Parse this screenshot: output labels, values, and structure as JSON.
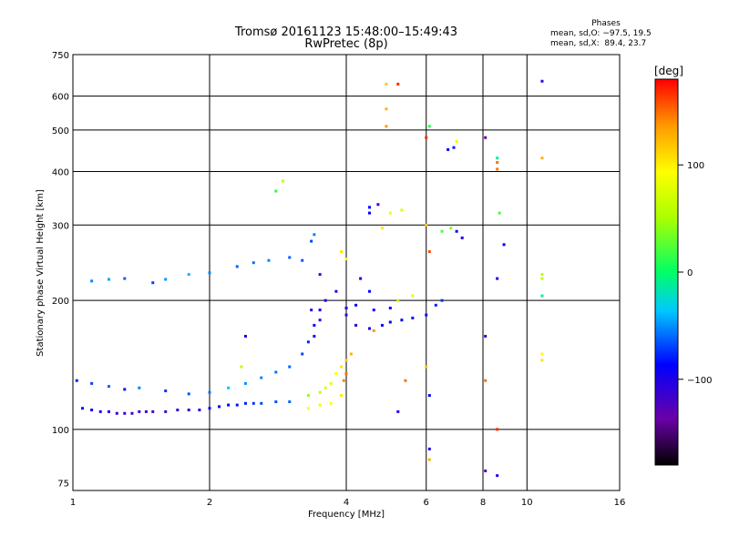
{
  "chart_data": {
    "type": "scatter",
    "title": "Tromsø 20161123 15:48:00–15:49:43",
    "subtitle": "RwPretec (8p)",
    "xlabel": "Frequency [MHz]",
    "ylabel": "Stationary phase Virtual Height [km]",
    "x_scale": "log",
    "y_scale": "log",
    "xlim": [
      1,
      16
    ],
    "ylim": [
      72,
      750
    ],
    "x_ticks": [
      1,
      2,
      4,
      6,
      8,
      10,
      16
    ],
    "x_tick_labels": [
      "1",
      "2",
      "4",
      "6",
      "8",
      "10",
      "16"
    ],
    "x_grid": [
      2,
      4,
      6,
      8,
      10
    ],
    "y_ticks": [
      75,
      100,
      200,
      300,
      400,
      500,
      600,
      750
    ],
    "y_tick_labels": [
      "75",
      "100",
      "200",
      "300",
      "400",
      "500",
      "600",
      "750"
    ],
    "y_grid": [
      100,
      200,
      300,
      400,
      500,
      600
    ],
    "grid": true,
    "colorbar": {
      "label": "[deg]",
      "range": [
        -180,
        180
      ],
      "ticks": [
        100,
        0,
        -100
      ],
      "tick_labels": [
        "100",
        "0",
        "−100"
      ]
    },
    "stats": {
      "header": "Phases",
      "row1": "mean, sd,O: −97.5, 19.5",
      "row2": "mean, sd,X:  89.4, 23.7"
    },
    "series": [
      {
        "points": [
          [
            1.05,
            112,
            -110
          ],
          [
            1.1,
            111,
            -105
          ],
          [
            1.15,
            110,
            -112
          ],
          [
            1.2,
            110,
            -115
          ],
          [
            1.25,
            109,
            -118
          ],
          [
            1.3,
            109,
            -120
          ],
          [
            1.35,
            109,
            -125
          ],
          [
            1.4,
            110,
            -120
          ],
          [
            1.45,
            110,
            -122
          ],
          [
            1.5,
            110,
            -125
          ],
          [
            1.6,
            110,
            -122
          ],
          [
            1.7,
            111,
            -118
          ],
          [
            1.8,
            111,
            -115
          ],
          [
            1.9,
            111,
            -112
          ],
          [
            2.0,
            112,
            -108
          ],
          [
            2.1,
            113,
            -105
          ],
          [
            2.2,
            114,
            -100
          ],
          [
            2.3,
            114,
            -95
          ],
          [
            2.4,
            115,
            -90
          ],
          [
            2.5,
            115,
            -85
          ],
          [
            2.6,
            115,
            -80
          ],
          [
            2.8,
            116,
            -75
          ],
          [
            3.0,
            116,
            -70
          ],
          [
            1.02,
            130,
            -90
          ],
          [
            1.1,
            128,
            -80
          ],
          [
            1.2,
            126,
            -70
          ],
          [
            1.3,
            124,
            -95
          ],
          [
            1.4,
            125,
            -60
          ],
          [
            1.6,
            123,
            -85
          ],
          [
            1.8,
            121,
            -75
          ],
          [
            2.0,
            122,
            -65
          ],
          [
            2.2,
            125,
            -40
          ],
          [
            2.4,
            128,
            -55
          ],
          [
            2.6,
            132,
            -60
          ],
          [
            2.8,
            136,
            -65
          ],
          [
            3.0,
            140,
            -70
          ],
          [
            3.2,
            150,
            -80
          ],
          [
            3.3,
            160,
            -90
          ],
          [
            3.4,
            175,
            -100
          ],
          [
            3.5,
            190,
            -105
          ],
          [
            3.6,
            200,
            -110
          ],
          [
            3.8,
            210,
            -115
          ],
          [
            4.0,
            185,
            -120
          ],
          [
            4.2,
            175,
            -115
          ],
          [
            4.5,
            172,
            -110
          ],
          [
            4.8,
            175,
            -105
          ],
          [
            5.0,
            178,
            -100
          ],
          [
            5.3,
            180,
            -100
          ],
          [
            5.6,
            182,
            -95
          ],
          [
            6.0,
            185,
            -95
          ],
          [
            6.3,
            195,
            -90
          ],
          [
            6.5,
            200,
            -85
          ],
          [
            1.1,
            222,
            -60
          ],
          [
            1.2,
            224,
            -50
          ],
          [
            1.3,
            225,
            -70
          ],
          [
            1.5,
            220,
            -80
          ],
          [
            1.6,
            224,
            -55
          ],
          [
            1.8,
            230,
            -45
          ],
          [
            2.0,
            232,
            -60
          ],
          [
            2.3,
            240,
            -70
          ],
          [
            2.5,
            245,
            -65
          ],
          [
            2.7,
            248,
            -60
          ],
          [
            3.0,
            252,
            -70
          ],
          [
            3.2,
            248,
            -75
          ],
          [
            3.35,
            275,
            -80
          ],
          [
            3.4,
            285,
            -60
          ],
          [
            3.35,
            190,
            -120
          ],
          [
            3.5,
            180,
            -125
          ],
          [
            3.4,
            165,
            -115
          ],
          [
            3.5,
            230,
            -120
          ],
          [
            4.0,
            192,
            -110
          ],
          [
            4.2,
            195,
            -105
          ],
          [
            4.6,
            190,
            -100
          ],
          [
            5.0,
            192,
            -100
          ],
          [
            4.3,
            225,
            -105
          ],
          [
            4.5,
            210,
            -100
          ],
          [
            3.3,
            120,
            40
          ],
          [
            3.5,
            122,
            60
          ],
          [
            3.6,
            125,
            80
          ],
          [
            3.7,
            128,
            90
          ],
          [
            3.8,
            135,
            100
          ],
          [
            3.9,
            140,
            110
          ],
          [
            4.0,
            145,
            120
          ],
          [
            4.1,
            150,
            130
          ],
          [
            3.7,
            115,
            100
          ],
          [
            3.9,
            120,
            110
          ],
          [
            3.95,
            130,
            145
          ],
          [
            4.0,
            135,
            150
          ],
          [
            3.3,
            112,
            100
          ],
          [
            3.5,
            114,
            95
          ],
          [
            4.6,
            170,
            140
          ],
          [
            5.2,
            200,
            60
          ],
          [
            5.6,
            205,
            80
          ],
          [
            4.0,
            250,
            100
          ],
          [
            3.9,
            260,
            110
          ],
          [
            4.8,
            295,
            110
          ],
          [
            5.0,
            320,
            90
          ],
          [
            5.3,
            325,
            80
          ],
          [
            6.5,
            290,
            20
          ],
          [
            6.8,
            295,
            40
          ],
          [
            7.0,
            290,
            -100
          ],
          [
            7.2,
            280,
            -110
          ],
          [
            6.7,
            450,
            -100
          ],
          [
            6.9,
            455,
            -95
          ],
          [
            7.0,
            470,
            90
          ],
          [
            4.9,
            560,
            130
          ],
          [
            4.9,
            640,
            120
          ],
          [
            5.2,
            640,
            170
          ],
          [
            4.9,
            510,
            140
          ],
          [
            8.1,
            480,
            -140
          ],
          [
            8.6,
            430,
            -10
          ],
          [
            8.6,
            420,
            150
          ],
          [
            8.6,
            405,
            150
          ],
          [
            8.7,
            320,
            20
          ],
          [
            8.9,
            270,
            -100
          ],
          [
            8.6,
            225,
            -115
          ],
          [
            8.1,
            165,
            -120
          ],
          [
            8.1,
            130,
            150
          ],
          [
            8.6,
            100,
            170
          ],
          [
            8.1,
            80,
            -130
          ],
          [
            8.6,
            78,
            -110
          ],
          [
            10.8,
            650,
            -120
          ],
          [
            10.8,
            430,
            130
          ],
          [
            10.8,
            230,
            60
          ],
          [
            10.8,
            225,
            60
          ],
          [
            10.8,
            205,
            -10
          ],
          [
            10.8,
            150,
            100
          ],
          [
            10.8,
            145,
            110
          ],
          [
            6.1,
            90,
            -110
          ],
          [
            6.1,
            85,
            130
          ],
          [
            6.1,
            510,
            10
          ],
          [
            6.0,
            480,
            170
          ],
          [
            6.0,
            300,
            120
          ],
          [
            6.1,
            260,
            160
          ],
          [
            6.0,
            140,
            120
          ],
          [
            6.1,
            120,
            -100
          ],
          [
            2.8,
            360,
            10
          ],
          [
            2.9,
            380,
            60
          ],
          [
            5.4,
            130,
            150
          ],
          [
            5.2,
            110,
            -110
          ],
          [
            4.5,
            320,
            -100
          ],
          [
            4.5,
            330,
            -100
          ],
          [
            4.7,
            335,
            -120
          ],
          [
            2.4,
            165,
            -110
          ],
          [
            2.35,
            140,
            60
          ]
        ]
      }
    ]
  }
}
